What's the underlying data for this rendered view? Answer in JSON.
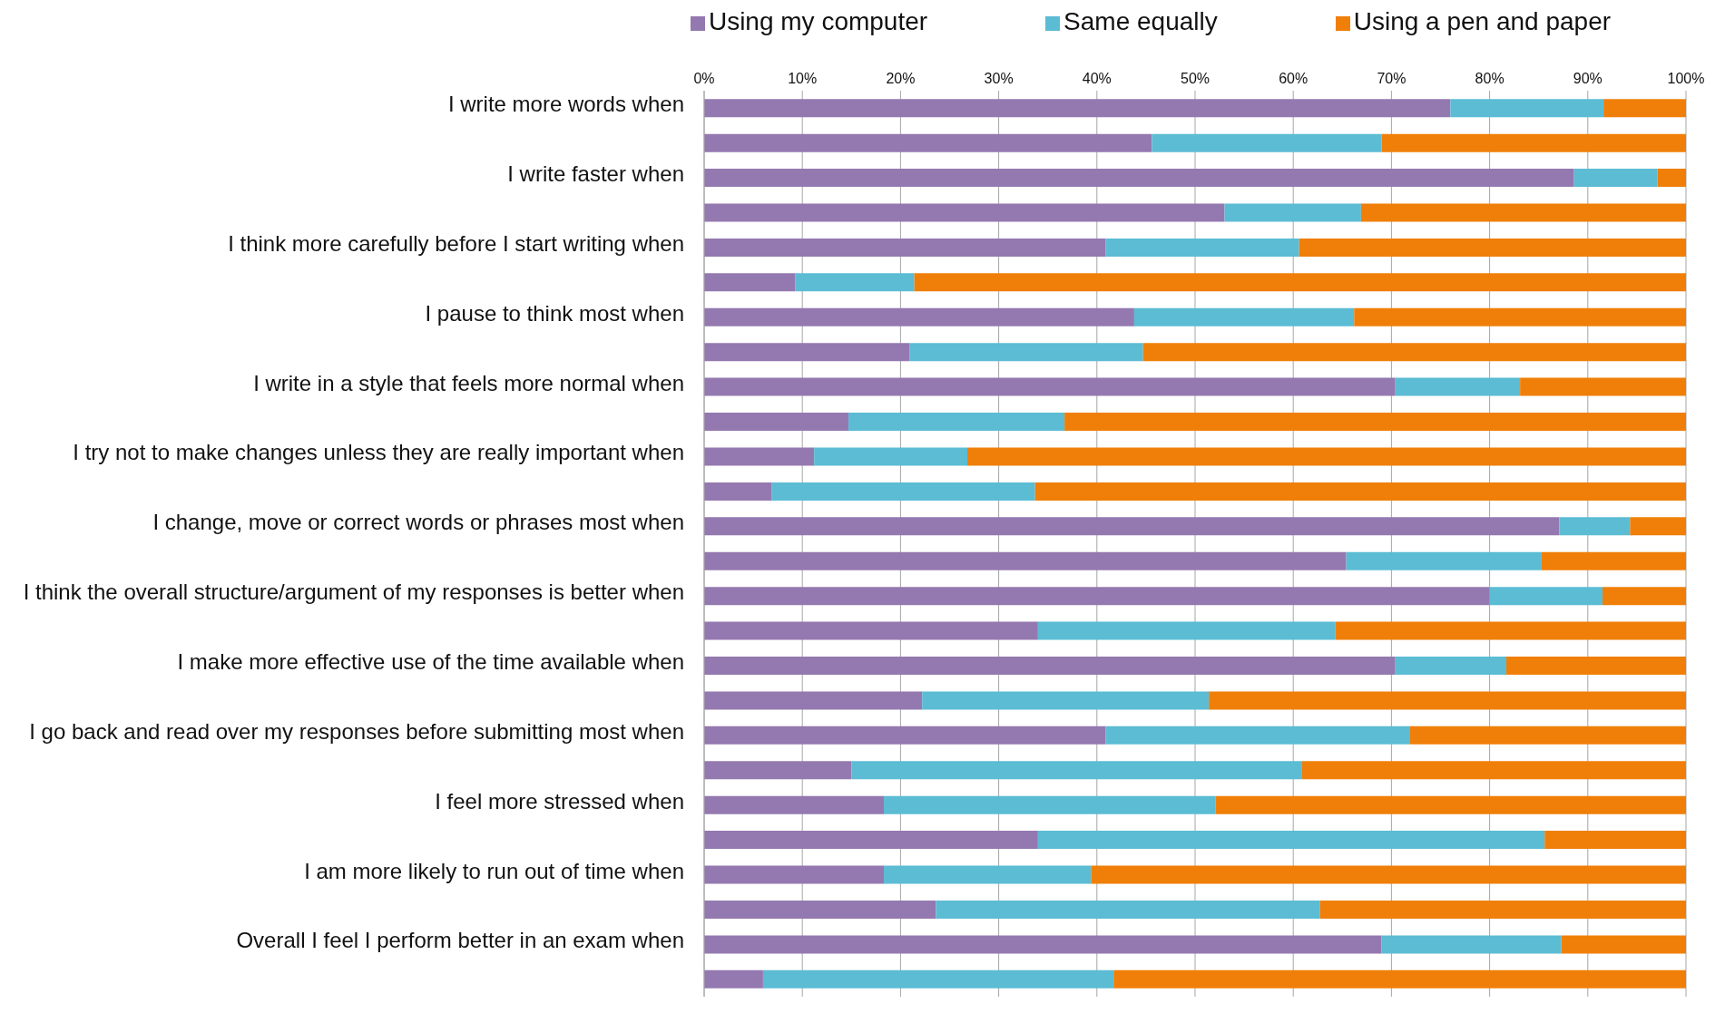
{
  "chart_data": {
    "type": "bar",
    "orientation": "horizontal",
    "stacked": true,
    "categories": [
      "I write more words when",
      null,
      "I write faster when",
      null,
      "I think more carefully before I start writing when",
      null,
      "I pause to think most when",
      null,
      "I write in a style that feels more normal when",
      null,
      "I try not to make changes unless they are really important when",
      null,
      "I change, move or correct words or phrases most when",
      null,
      "I think the overall structure/argument of my responses is better when",
      null,
      "I make more effective use of the time available when",
      null,
      "I go back and read over my responses before submitting most when",
      null,
      "I feel more stressed when",
      null,
      "I am more likely to run out of time when",
      null,
      "Overall I feel I perform better in an exam when",
      null
    ],
    "series": [
      {
        "name": "Using my computer",
        "color": "#9479b0",
        "values": [
          76.0,
          45.6,
          88.6,
          53.0,
          40.9,
          9.3,
          43.8,
          20.9,
          70.4,
          14.7,
          11.2,
          6.9,
          87.1,
          65.4,
          80.0,
          34.0,
          70.4,
          22.2,
          40.9,
          15.0,
          18.3,
          34.0,
          18.3,
          23.6,
          69.0,
          6.0
        ]
      },
      {
        "name": "Same equally",
        "color": "#5bbcd4",
        "values": [
          15.6,
          23.4,
          8.5,
          13.9,
          19.7,
          12.1,
          22.4,
          23.8,
          12.7,
          22.0,
          15.6,
          26.8,
          7.2,
          19.9,
          11.5,
          30.3,
          11.3,
          29.2,
          31.0,
          45.9,
          33.8,
          51.6,
          21.1,
          39.1,
          18.3,
          35.7
        ]
      },
      {
        "name": "Using a pen and paper",
        "color": "#f07f09",
        "values": [
          8.4,
          31.0,
          2.9,
          33.1,
          39.4,
          78.6,
          33.8,
          55.3,
          16.9,
          63.3,
          73.2,
          66.3,
          5.7,
          14.7,
          8.5,
          35.7,
          18.3,
          48.6,
          28.1,
          39.1,
          47.9,
          14.4,
          60.6,
          37.3,
          12.7,
          58.3
        ]
      }
    ],
    "xlim": [
      0,
      100
    ],
    "xticks": [
      {
        "value": 0,
        "label": "0%"
      },
      {
        "value": 10,
        "label": "10%"
      },
      {
        "value": 20,
        "label": "20%"
      },
      {
        "value": 30,
        "label": "30%"
      },
      {
        "value": 40,
        "label": "40%"
      },
      {
        "value": 50,
        "label": "50%"
      },
      {
        "value": 60,
        "label": "60%"
      },
      {
        "value": 70,
        "label": "70%"
      },
      {
        "value": 80,
        "label": "80%"
      },
      {
        "value": 90,
        "label": "90%"
      },
      {
        "value": 100,
        "label": "100%"
      }
    ],
    "grid": "x",
    "legend": "top"
  }
}
